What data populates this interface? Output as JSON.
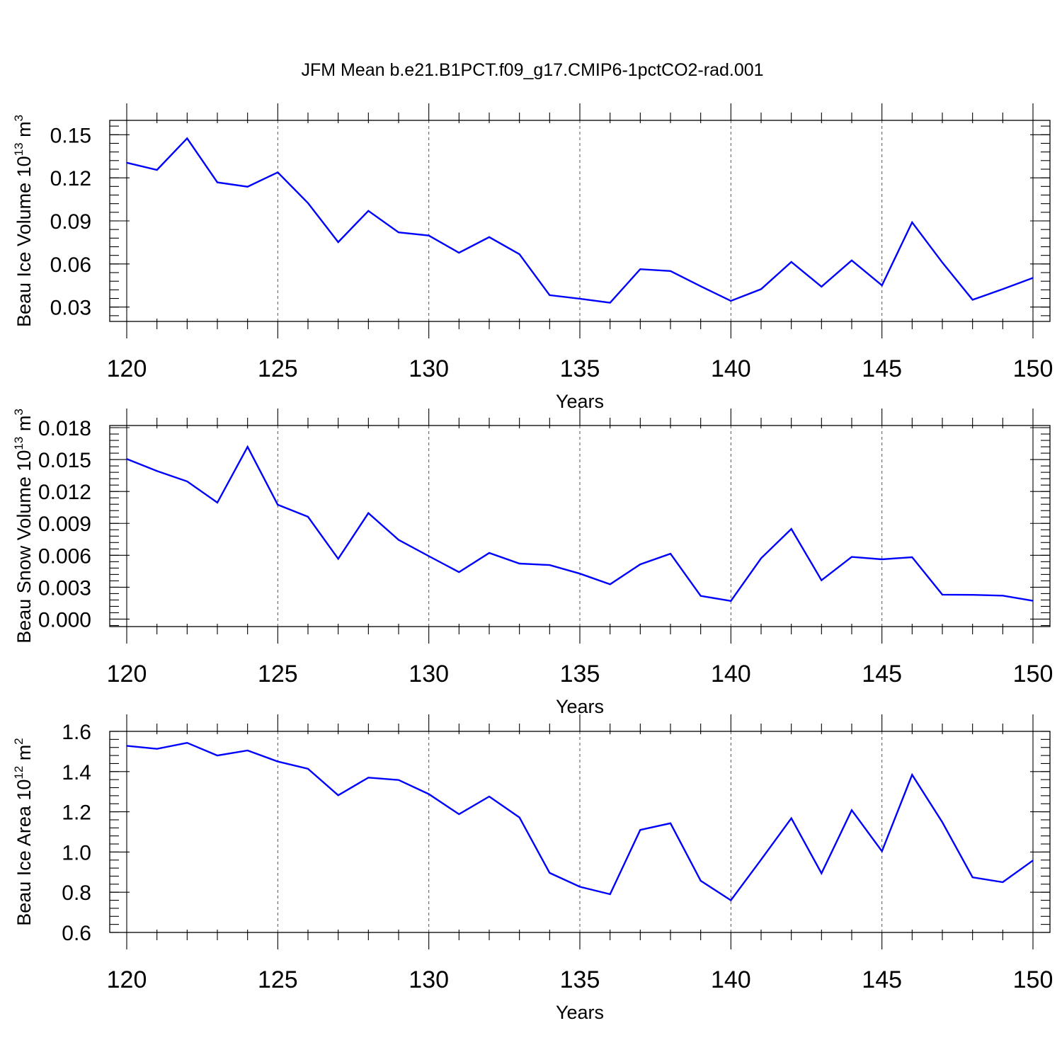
{
  "figure": {
    "title": "JFM Mean b.e21.B1PCT.f09_g17.CMIP6-1pctCO2-rad.001"
  },
  "colors": {
    "series": "#0000ff",
    "axis": "#000000",
    "grid": "#555555"
  },
  "chart_data": [
    {
      "type": "line",
      "ylabel_main": "Beau Ice Volume 10",
      "ylabel_exp": "13",
      "ylabel_unit": " m",
      "ylabel_unit_exp": "3",
      "xlabel": "Years",
      "xlim": [
        120,
        150
      ],
      "ylim": [
        0.02,
        0.16
      ],
      "xticks": [
        120,
        125,
        130,
        135,
        140,
        145,
        150
      ],
      "xtick_labels": [
        "120",
        "125",
        "130",
        "135",
        "140",
        "145",
        "150"
      ],
      "yticks": [
        0.03,
        0.06,
        0.09,
        0.12,
        0.15
      ],
      "ytick_labels": [
        "0.03",
        "0.06",
        "0.09",
        "0.12",
        "0.15"
      ],
      "y_minor_step": 0.006,
      "grid_x": [
        125,
        130,
        135,
        140,
        145
      ],
      "x": [
        120,
        121,
        122,
        123,
        124,
        125,
        126,
        127,
        128,
        129,
        130,
        131,
        132,
        133,
        134,
        135,
        136,
        137,
        138,
        139,
        140,
        141,
        142,
        143,
        144,
        145,
        146,
        147,
        148,
        149,
        150
      ],
      "series": [
        {
          "name": "Beau Ice Volume",
          "values": [
            0.1305,
            0.1255,
            0.1475,
            0.1168,
            0.1138,
            0.1238,
            0.1024,
            0.0752,
            0.097,
            0.082,
            0.0798,
            0.0678,
            0.0787,
            0.0668,
            0.0383,
            0.0358,
            0.033,
            0.0564,
            0.0551,
            0.0445,
            0.0343,
            0.0425,
            0.0614,
            0.0442,
            0.0625,
            0.0451,
            0.089,
            0.061,
            0.0351,
            0.0425,
            0.0503
          ]
        }
      ]
    },
    {
      "type": "line",
      "ylabel_main": "Beau Snow Volume 10",
      "ylabel_exp": "13",
      "ylabel_unit": " m",
      "ylabel_unit_exp": "3",
      "xlabel": "Years",
      "xlim": [
        120,
        150
      ],
      "ylim": [
        -0.0007,
        0.0182
      ],
      "xticks": [
        120,
        125,
        130,
        135,
        140,
        145,
        150
      ],
      "xtick_labels": [
        "120",
        "125",
        "130",
        "135",
        "140",
        "145",
        "150"
      ],
      "yticks": [
        0.0,
        0.003,
        0.006,
        0.009,
        0.012,
        0.015,
        0.018
      ],
      "ytick_labels": [
        "0.000",
        "0.003",
        "0.006",
        "0.009",
        "0.012",
        "0.015",
        "0.018"
      ],
      "y_minor_step": 0.0006,
      "grid_x": [
        125,
        130,
        135,
        140,
        145
      ],
      "x": [
        120,
        121,
        122,
        123,
        124,
        125,
        126,
        127,
        128,
        129,
        130,
        131,
        132,
        133,
        134,
        135,
        136,
        137,
        138,
        139,
        140,
        141,
        142,
        143,
        144,
        145,
        146,
        147,
        148,
        149,
        150
      ],
      "series": [
        {
          "name": "Beau Snow Volume",
          "values": [
            0.01505,
            0.01392,
            0.01295,
            0.01095,
            0.0162,
            0.01075,
            0.00962,
            0.00567,
            0.00997,
            0.00745,
            0.00592,
            0.00442,
            0.00622,
            0.00522,
            0.00508,
            0.00428,
            0.00327,
            0.00515,
            0.00615,
            0.00218,
            0.00171,
            0.00572,
            0.00848,
            0.00365,
            0.00585,
            0.00562,
            0.00582,
            0.0023,
            0.00228,
            0.00221,
            0.00172
          ]
        }
      ]
    },
    {
      "type": "line",
      "ylabel_main": "Beau Ice Area 10",
      "ylabel_exp": "12",
      "ylabel_unit": " m",
      "ylabel_unit_exp": "2",
      "xlabel": "Years",
      "xlim": [
        120,
        150
      ],
      "ylim": [
        0.6,
        1.6
      ],
      "xticks": [
        120,
        125,
        130,
        135,
        140,
        145,
        150
      ],
      "xtick_labels": [
        "120",
        "125",
        "130",
        "135",
        "140",
        "145",
        "150"
      ],
      "yticks": [
        0.6,
        0.8,
        1.0,
        1.2,
        1.4,
        1.6
      ],
      "ytick_labels": [
        "0.6",
        "0.8",
        "1.0",
        "1.2",
        "1.4",
        "1.6"
      ],
      "y_minor_step": 0.04,
      "grid_x": [
        125,
        130,
        135,
        140,
        145
      ],
      "x": [
        120,
        121,
        122,
        123,
        124,
        125,
        126,
        127,
        128,
        129,
        130,
        131,
        132,
        133,
        134,
        135,
        136,
        137,
        138,
        139,
        140,
        141,
        142,
        143,
        144,
        145,
        146,
        147,
        148,
        149,
        150
      ],
      "series": [
        {
          "name": "Beau Ice Area",
          "values": [
            1.528,
            1.513,
            1.543,
            1.48,
            1.505,
            1.45,
            1.414,
            1.282,
            1.37,
            1.358,
            1.288,
            1.188,
            1.276,
            1.172,
            0.896,
            0.827,
            0.79,
            1.11,
            1.143,
            0.857,
            0.76,
            0.962,
            1.168,
            0.894,
            1.208,
            1.004,
            1.384,
            1.148,
            0.874,
            0.85,
            0.958
          ]
        }
      ]
    }
  ]
}
